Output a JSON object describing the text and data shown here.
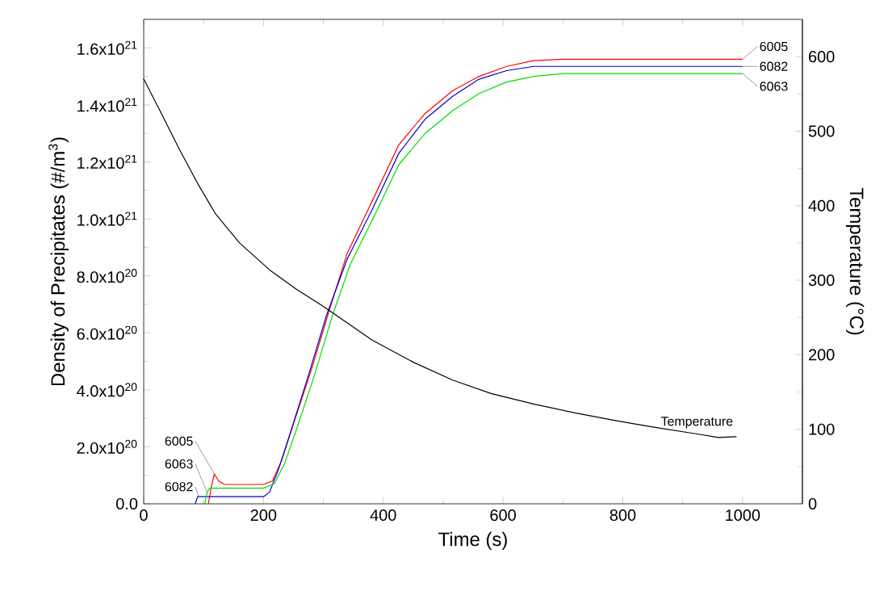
{
  "chart_data": {
    "type": "line",
    "xlabel": "Time (s)",
    "ylabel": "Density of Precipitates (#/m$^{3}$)",
    "y2label": "Temperature (°C)",
    "xlim": [
      0,
      1100
    ],
    "xticks": [
      0,
      200,
      400,
      600,
      800,
      1000
    ],
    "ylim": [
      0,
      1.7e+21
    ],
    "yticks": [
      {
        "value": 0,
        "label": "0.0"
      },
      {
        "value": 2e+20,
        "label": "2.0x10$^{20}$"
      },
      {
        "value": 4e+20,
        "label": "4.0x10$^{20}$"
      },
      {
        "value": 6e+20,
        "label": "6.0x10$^{20}$"
      },
      {
        "value": 8e+20,
        "label": "8.0x10$^{20}$"
      },
      {
        "value": 1e+21,
        "label": "1.0x10$^{21}$"
      },
      {
        "value": 1.2e+21,
        "label": "1.2x10$^{21}$"
      },
      {
        "value": 1.4e+21,
        "label": "1.4x10$^{21}$"
      },
      {
        "value": 1.6e+21,
        "label": "1.6x10$^{21}$"
      }
    ],
    "y2lim": [
      0,
      650
    ],
    "y2ticks": [
      0,
      100,
      200,
      300,
      400,
      500,
      600
    ],
    "grid": false,
    "series": [
      {
        "name": "6005",
        "color": "#ff0000",
        "x": [
          108,
          113,
          118,
          125,
          135,
          200,
          215,
          230,
          250,
          280,
          310,
          340,
          381,
          426,
          470,
          516,
          560,
          606,
          651,
          700,
          1000
        ],
        "values": [
          0,
          6e+19,
          1.05e+20,
          8e+19,
          6.8e+19,
          6.8e+19,
          8e+19,
          1.5e+20,
          2.8e+20,
          4.7e+20,
          6.8e+20,
          8.8e+20,
          1.06e+21,
          1.26e+21,
          1.37e+21,
          1.45e+21,
          1.5e+21,
          1.535e+21,
          1.555e+21,
          1.56e+21,
          1.56e+21
        ]
      },
      {
        "name": "6082",
        "color": "#0000cc",
        "x": [
          86,
          90,
          200,
          210,
          225,
          245,
          275,
          305,
          340,
          381,
          426,
          470,
          516,
          560,
          606,
          651,
          700,
          1000
        ],
        "values": [
          0,
          2.5e+19,
          2.5e+19,
          4e+19,
          1.2e+20,
          2.5e+20,
          4.5e+20,
          6.6e+20,
          8.6e+20,
          1.03e+21,
          1.23e+21,
          1.35e+21,
          1.43e+21,
          1.49e+21,
          1.52e+21,
          1.535e+21,
          1.535e+21,
          1.535e+21
        ]
      },
      {
        "name": "6063",
        "color": "#00dd00",
        "x": [
          102,
          106,
          110,
          200,
          218,
          235,
          255,
          285,
          315,
          345,
          385,
          426,
          470,
          516,
          560,
          606,
          651,
          700,
          1000
        ],
        "values": [
          0,
          4e+19,
          5.5e+19,
          5.5e+19,
          7e+19,
          1.4e+20,
          2.6e+20,
          4.5e+20,
          6.6e+20,
          8.4e+20,
          1.01e+21,
          1.19e+21,
          1.3e+21,
          1.38e+21,
          1.44e+21,
          1.48e+21,
          1.5e+21,
          1.51e+21,
          1.51e+21
        ]
      },
      {
        "name": "Temperature",
        "color": "#000000",
        "axis": "y2",
        "x": [
          0,
          30,
          60,
          90,
          120,
          160,
          210,
          255,
          300,
          381,
          450,
          516,
          580,
          651,
          720,
          786,
          850,
          922,
          960,
          990
        ],
        "values": [
          570,
          523,
          475,
          430,
          389,
          350,
          314,
          288,
          265,
          220,
          190,
          166,
          148,
          134,
          122,
          112,
          103,
          94,
          89,
          90
        ]
      }
    ],
    "annotations": [
      {
        "text": "6005",
        "x": 118,
        "y": 1.05e+20
      },
      {
        "text": "6063",
        "x": 106,
        "y": 4e+19
      },
      {
        "text": "6082",
        "x": 92,
        "y": 2.5e+19
      }
    ]
  }
}
